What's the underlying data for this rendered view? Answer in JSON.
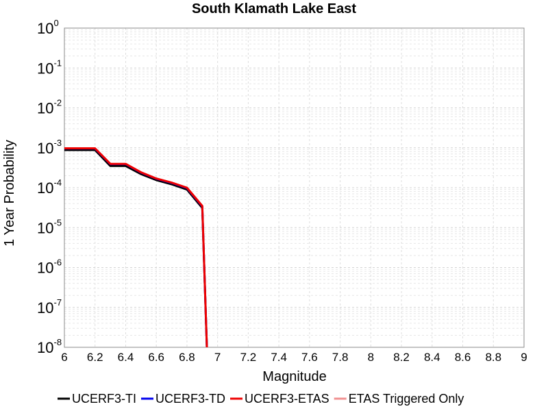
{
  "chart_data": {
    "type": "line",
    "title": "South Klamath Lake East",
    "xlabel": "Magnitude",
    "ylabel": "1 Year Probability",
    "xlim": [
      6,
      9
    ],
    "ylim": [
      1e-08,
      1
    ],
    "yscale": "log",
    "grid": true,
    "legend_position": "bottom",
    "x_ticks": [
      "6",
      "6.2",
      "6.4",
      "6.6",
      "6.8",
      "7",
      "7.2",
      "7.4",
      "7.6",
      "7.8",
      "8",
      "8.2",
      "8.4",
      "8.6",
      "8.8",
      "9"
    ],
    "y_ticks": [
      {
        "base": "10",
        "exp": "0"
      },
      {
        "base": "10",
        "exp": "-1"
      },
      {
        "base": "10",
        "exp": "-2"
      },
      {
        "base": "10",
        "exp": "-3"
      },
      {
        "base": "10",
        "exp": "-4"
      },
      {
        "base": "10",
        "exp": "-5"
      },
      {
        "base": "10",
        "exp": "-6"
      },
      {
        "base": "10",
        "exp": "-7"
      },
      {
        "base": "10",
        "exp": "-8"
      }
    ],
    "series": [
      {
        "name": "UCERF3-TI",
        "color": "#000000",
        "x": [
          6.0,
          6.2,
          6.3,
          6.4,
          6.5,
          6.6,
          6.7,
          6.8,
          6.9,
          6.93
        ],
        "y": [
          0.00088,
          0.00088,
          0.00035,
          0.00035,
          0.00022,
          0.000155,
          0.000122,
          9e-05,
          3.1e-05,
          1e-08
        ]
      },
      {
        "name": "UCERF3-TD",
        "color": "#0000ee",
        "x": [
          6.0,
          6.2,
          6.3,
          6.4,
          6.5,
          6.6,
          6.7,
          6.8,
          6.9,
          6.93
        ],
        "y": [
          0.00096,
          0.00096,
          0.00039,
          0.00039,
          0.00024,
          0.000168,
          0.000132,
          9.8e-05,
          3.4e-05,
          1e-08
        ]
      },
      {
        "name": "UCERF3-ETAS",
        "color": "#ee0000",
        "x": [
          6.0,
          6.2,
          6.3,
          6.4,
          6.5,
          6.6,
          6.7,
          6.8,
          6.9,
          6.93
        ],
        "y": [
          0.00097,
          0.00097,
          0.000395,
          0.000395,
          0.000243,
          0.00017,
          0.000134,
          0.0001,
          3.5e-05,
          1e-08
        ]
      },
      {
        "name": "ETAS Triggered Only",
        "color": "#f09090",
        "x": [],
        "y": []
      }
    ]
  }
}
